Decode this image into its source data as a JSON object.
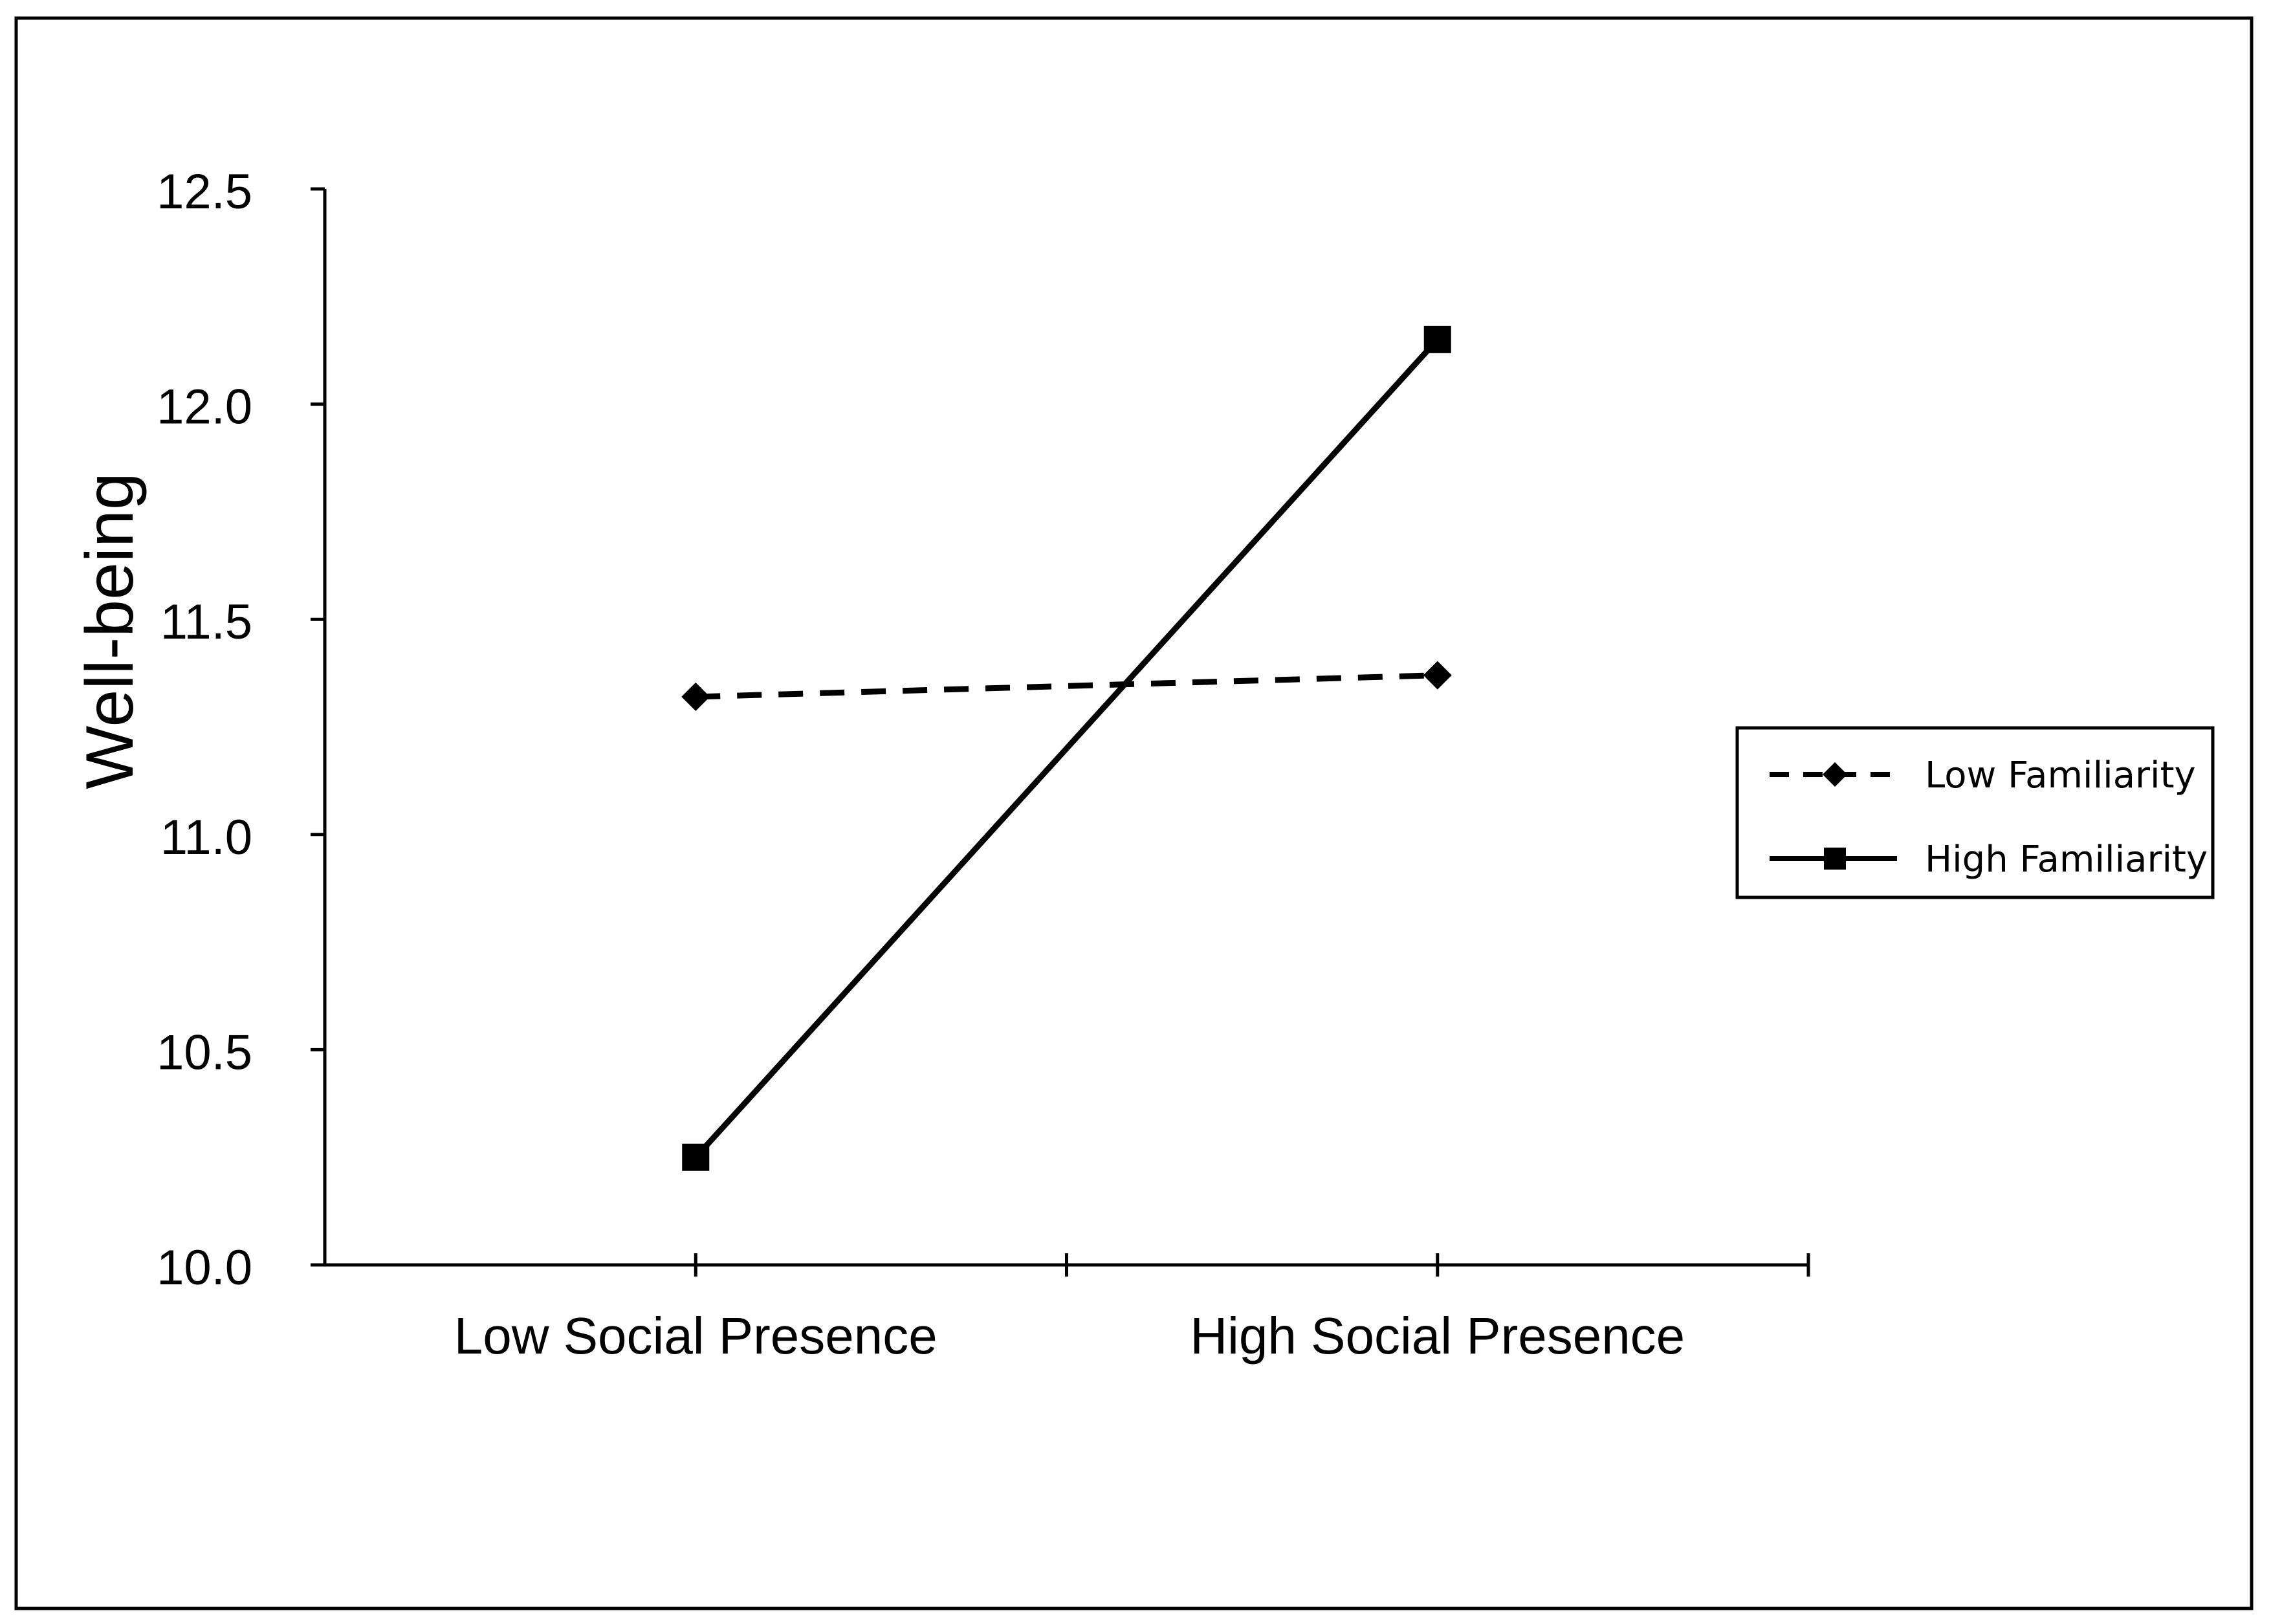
{
  "chart_data": {
    "type": "line",
    "title": "",
    "xlabel": "",
    "ylabel": "Well-being",
    "categories": [
      "Low Social Presence",
      "High Social Presence"
    ],
    "ylim": [
      10.0,
      12.5
    ],
    "yticks": [
      10.0,
      10.5,
      11.0,
      11.5,
      12.0,
      12.5
    ],
    "ytick_labels": [
      "10.0",
      "10.5",
      "11.0",
      "11.5",
      "12.0",
      "12.5"
    ],
    "grid": false,
    "legend_position": "right",
    "series": [
      {
        "name": "Low Familiarity",
        "values": [
          11.32,
          11.37
        ],
        "line_style": "dashed",
        "marker": "diamond",
        "color": "#000000"
      },
      {
        "name": "High Familiarity",
        "values": [
          10.25,
          12.15
        ],
        "line_style": "solid",
        "marker": "square",
        "color": "#000000"
      }
    ]
  }
}
